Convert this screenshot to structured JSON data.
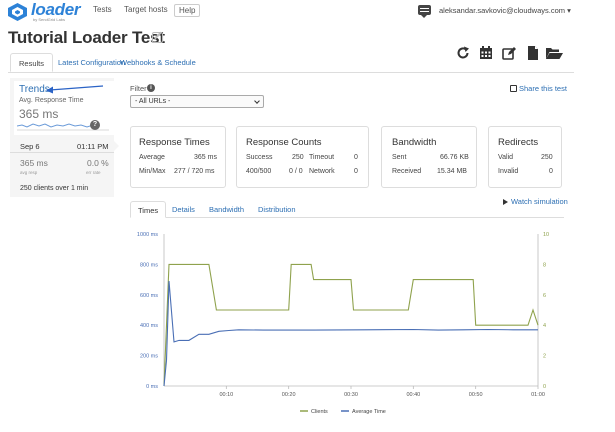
{
  "nav": {
    "logo": "loader",
    "logo_sub": "by SendGrid Labs",
    "links": [
      "Tests",
      "Target hosts"
    ],
    "help": "Help",
    "user_email": "aleksandar.savkovic@cloudways.com"
  },
  "page": {
    "title": "Tutorial Loader Test"
  },
  "tabs": [
    "Results",
    "Latest Configuration",
    "Webhooks & Schedule"
  ],
  "left": {
    "trends": "Trends",
    "avg_label": "Avg. Response Time",
    "avg_value": "365 ms",
    "spark_badge": "?",
    "run": {
      "date": "Sep 6",
      "time": "01:11 PM",
      "resp": "365 ms",
      "resp_caption": "avg resp",
      "err": "0.0 %",
      "err_caption": "err rate",
      "clients": "250 clients over 1 min"
    }
  },
  "filter": {
    "label": "Filter",
    "info": "i",
    "value": "- All URLs -"
  },
  "share": "Share this test",
  "cards": {
    "response_times": {
      "title": "Response Times",
      "rows": [
        {
          "label": "Average",
          "value": "365 ms"
        },
        {
          "label": "Min/Max",
          "value": "277 / 720 ms"
        }
      ]
    },
    "response_counts": {
      "title": "Response Counts",
      "rows": [
        {
          "label": "Success",
          "value": "250",
          "label2": "Timeout",
          "value2": "0"
        },
        {
          "label": "400/500",
          "value": "0 / 0",
          "label2": "Network",
          "value2": "0"
        }
      ]
    },
    "bandwidth": {
      "title": "Bandwidth",
      "rows": [
        {
          "label": "Sent",
          "value": "66.76 KB"
        },
        {
          "label": "Received",
          "value": "15.34 MB"
        }
      ]
    },
    "redirects": {
      "title": "Redirects",
      "rows": [
        {
          "label": "Valid",
          "value": "250"
        },
        {
          "label": "Invalid",
          "value": "0"
        }
      ]
    }
  },
  "chart_tabs": [
    "Times",
    "Details",
    "Bandwidth",
    "Distribution"
  ],
  "watch": "Watch simulation",
  "colors": {
    "clients": "#8fa24d",
    "avg_time": "#4a6fb5",
    "link": "#2d6fb3"
  },
  "chart_data": {
    "type": "line",
    "x_ticks": [
      "00:10",
      "00:20",
      "00:30",
      "00:40",
      "00:50",
      "01:00"
    ],
    "y_left_ticks": [
      "0 ms",
      "200 ms",
      "400 ms",
      "600 ms",
      "800 ms",
      "1000 ms"
    ],
    "y_right_ticks": [
      "0",
      "2",
      "4",
      "6",
      "8",
      "10"
    ],
    "ylim_left": [
      0,
      1000
    ],
    "ylim_right": [
      0,
      10
    ],
    "xlim": [
      0,
      60
    ],
    "grid": false,
    "legend": "bottom",
    "series": [
      {
        "name": "Clients",
        "axis": "right",
        "color": "#8fa24d",
        "points": [
          [
            0,
            0
          ],
          [
            0.8,
            8
          ],
          [
            7.2,
            8
          ],
          [
            8.4,
            5
          ],
          [
            20,
            5
          ],
          [
            20.4,
            8
          ],
          [
            23.6,
            8
          ],
          [
            24,
            7
          ],
          [
            30,
            7
          ],
          [
            30.4,
            5
          ],
          [
            39.2,
            5
          ],
          [
            40,
            7
          ],
          [
            49.6,
            7
          ],
          [
            50,
            4
          ],
          [
            58.4,
            4
          ],
          [
            59.2,
            5
          ],
          [
            60,
            4
          ]
        ]
      },
      {
        "name": "Average Time",
        "axis": "left",
        "color": "#4a6fb5",
        "points": [
          [
            0,
            0
          ],
          [
            0.4,
            170
          ],
          [
            0.8,
            690
          ],
          [
            1.2,
            490
          ],
          [
            1.6,
            290
          ],
          [
            2.4,
            300
          ],
          [
            4,
            300
          ],
          [
            5.6,
            340
          ],
          [
            7.2,
            340
          ],
          [
            8.8,
            360
          ],
          [
            10.4,
            365
          ],
          [
            12,
            370
          ],
          [
            16,
            368
          ],
          [
            24,
            368
          ],
          [
            32,
            370
          ],
          [
            40,
            372
          ],
          [
            44,
            368
          ],
          [
            48,
            370
          ],
          [
            52,
            372
          ],
          [
            56,
            370
          ],
          [
            60,
            370
          ]
        ]
      }
    ]
  }
}
